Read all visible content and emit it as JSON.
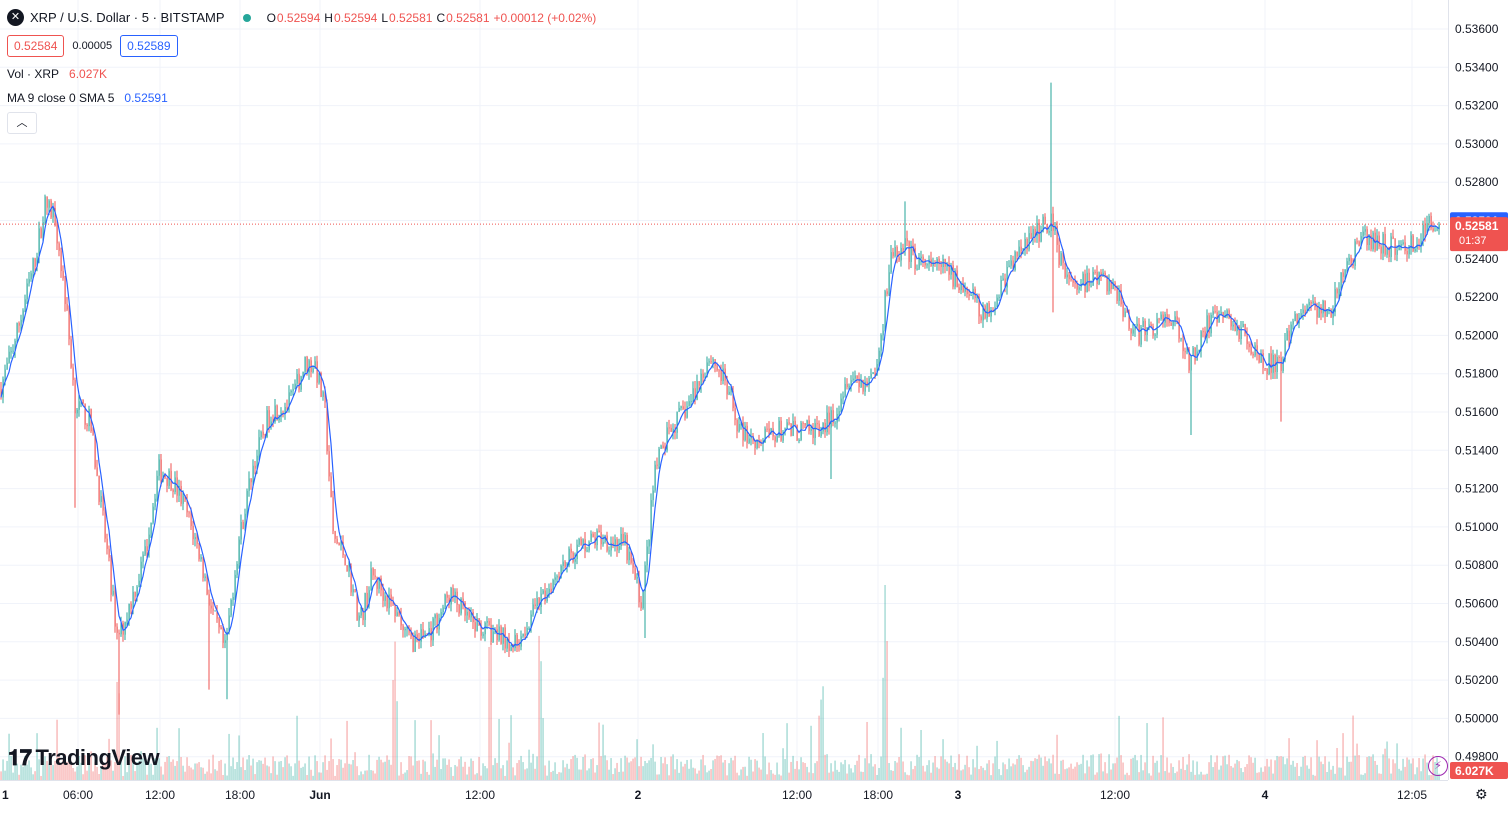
{
  "header": {
    "symbol_icon": "x-icon",
    "title": "XRP / U.S. Dollar · 5 · BITSTAMP",
    "open_label": "O",
    "open": "0.52594",
    "high_label": "H",
    "high": "0.52594",
    "low_label": "L",
    "low": "0.52581",
    "close_label": "C",
    "close": "0.52581",
    "change": "+0.00012 (+0.02%)",
    "bid": "0.52584",
    "spread": "0.00005",
    "ask": "0.52589"
  },
  "volume_legend": {
    "label": "Vol · XRP",
    "value": "6.027K"
  },
  "ma_legend": {
    "label": "MA 9 close 0 SMA 5",
    "value": "0.52591"
  },
  "collapse_icon": "chevron-up-icon",
  "brand": {
    "name": "TradingView",
    "logo_icon": "tv-logo-icon"
  },
  "colors": {
    "up": "#26a69a",
    "down": "#ef5350",
    "ma": "#2962ff",
    "current": "#ef5350"
  },
  "price_axis_labels": [
    "0.53600",
    "0.53400",
    "0.53200",
    "0.53000",
    "0.52800",
    "0.52591",
    "0.52581",
    "01:37",
    "0.52400",
    "0.52200",
    "0.52000",
    "0.51800",
    "0.51600",
    "0.51400",
    "0.51200",
    "0.51000",
    "0.50800",
    "0.50600",
    "0.50400",
    "0.50200",
    "0.50000",
    "0.49800",
    "6.027K"
  ],
  "time_axis_labels": [
    "1",
    "06:00",
    "12:00",
    "18:00",
    "Jun",
    "12:00",
    "2",
    "12:00",
    "18:00",
    "3",
    "12:00",
    "4",
    "12:05"
  ],
  "chart_data": {
    "type": "candlestick",
    "series": [
      {
        "name": "XRP / U.S. Dollar",
        "x": [
          "06:00",
          "12:00",
          "18:00",
          "Jun",
          "12:00",
          "2",
          "12:00",
          "18:00",
          "3",
          "12:00",
          "4",
          "12:05"
        ],
        "y": [
          0.5258,
          0.5134,
          0.516,
          0.5192,
          0.504,
          0.508,
          0.5158,
          0.5226,
          0.5228,
          0.5183,
          0.521,
          0.5258
        ]
      }
    ],
    "ma": {
      "name": "MA 9 close 0 SMA 5",
      "last": 0.52591
    },
    "current_price": 0.52581,
    "ylim": [
      0.497,
      0.537
    ],
    "yticks": [
      0.536,
      0.534,
      0.532,
      0.53,
      0.528,
      0.526,
      0.524,
      0.522,
      0.52,
      0.518,
      0.516,
      0.514,
      0.512,
      0.51,
      0.508,
      0.506,
      0.504,
      0.502,
      0.5,
      0.498
    ],
    "grid": true,
    "volume_last": "6.027K"
  }
}
